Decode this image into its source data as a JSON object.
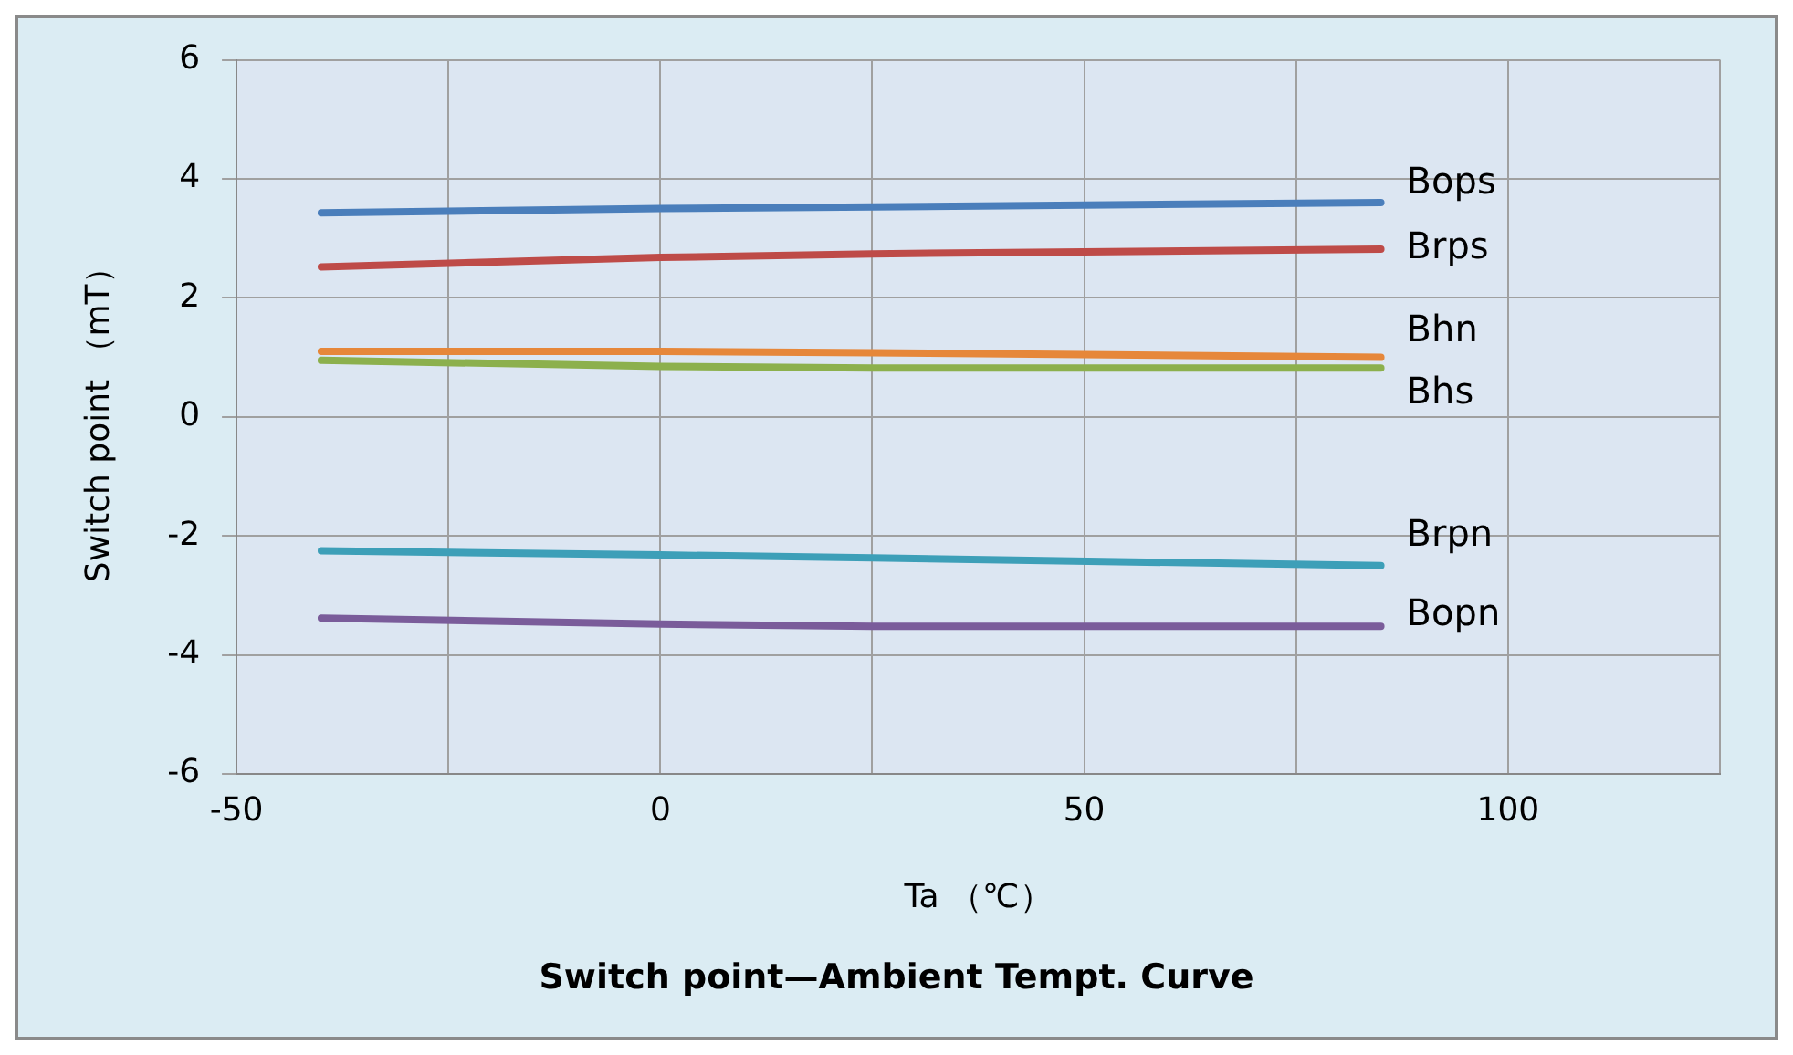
{
  "chart_data": {
    "type": "line",
    "title": "Switch point—Ambient Tempt. Curve",
    "xlabel": "Ta （℃）",
    "ylabel": "Switch point （mT）",
    "x": [
      -40,
      0,
      25,
      85
    ],
    "series": [
      {
        "name": "Bops",
        "color": "#4a7ebb",
        "values": [
          3.43,
          3.5,
          3.53,
          3.6
        ]
      },
      {
        "name": "Brps",
        "color": "#be4b48",
        "values": [
          2.52,
          2.68,
          2.74,
          2.82
        ]
      },
      {
        "name": "Bhn",
        "color": "#e6873a",
        "values": [
          1.1,
          1.1,
          1.08,
          1.0
        ]
      },
      {
        "name": "Bhs",
        "color": "#8cb04d",
        "values": [
          0.95,
          0.85,
          0.82,
          0.82
        ]
      },
      {
        "name": "Brpn",
        "color": "#3d9fb8",
        "values": [
          -2.25,
          -2.32,
          -2.37,
          -2.5
        ]
      },
      {
        "name": "Bopn",
        "color": "#7a5c9a",
        "values": [
          -3.38,
          -3.48,
          -3.52,
          -3.52
        ]
      }
    ],
    "xlim": [
      -50,
      125
    ],
    "xticks": [
      -50,
      {
        "value": -25,
        "label": null
      },
      0,
      {
        "value": 25,
        "label": null
      },
      50,
      {
        "value": 75,
        "label": null
      },
      100,
      {
        "value": 125,
        "label": null
      }
    ],
    "ylim": [
      -6,
      6
    ],
    "yticks": [
      -6,
      -4,
      -2,
      0,
      2,
      4,
      6
    ],
    "grid": true,
    "legend": false,
    "marker": "none",
    "line_style": "solid"
  }
}
